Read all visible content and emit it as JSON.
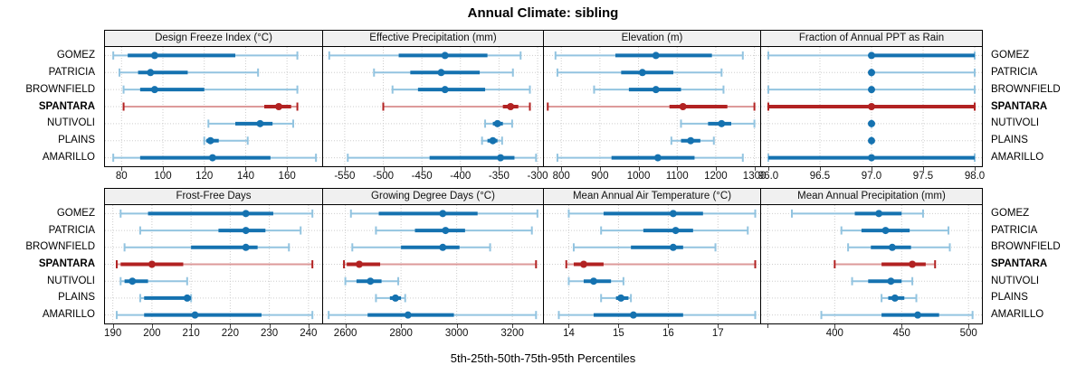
{
  "title": "Annual Climate: sibling",
  "footer": "5th-25th-50th-75th-95th Percentiles",
  "sites": [
    "GOMEZ",
    "PATRICIA",
    "BROWNFIELD",
    "SPANTARA",
    "NUTIVOLI",
    "PLAINS",
    "AMARILLO"
  ],
  "highlight_site": "SPANTARA",
  "percentiles": [
    5,
    25,
    50,
    75,
    95
  ],
  "colors": {
    "blue": "#1572b0",
    "blue_light": "#93c4e0",
    "red": "#b22222",
    "red_light": "#dd9a9a",
    "grid": "#cdcdcd",
    "border": "#000000",
    "header_bg": "#f0f0f0"
  },
  "chart_data": [
    {
      "type": "scatter",
      "style": "percentile-intervals",
      "title": "Design Freeze Index (°C)",
      "xlim": [
        72,
        177
      ],
      "xticks": [
        80,
        100,
        120,
        140,
        160
      ],
      "xtick_labels": [
        "80",
        "100",
        "120",
        "140",
        "160"
      ],
      "series": [
        {
          "site": "GOMEZ",
          "percentiles": [
            76,
            83,
            96,
            135,
            165
          ]
        },
        {
          "site": "PATRICIA",
          "percentiles": [
            79,
            88,
            94,
            112,
            146
          ]
        },
        {
          "site": "BROWNFIELD",
          "percentiles": [
            81,
            89,
            96,
            120,
            165
          ]
        },
        {
          "site": "SPANTARA",
          "percentiles": [
            81,
            149,
            156,
            162,
            165
          ]
        },
        {
          "site": "NUTIVOLI",
          "percentiles": [
            122,
            135,
            147,
            153,
            163
          ]
        },
        {
          "site": "PLAINS",
          "percentiles": [
            120,
            121,
            123,
            127,
            141
          ]
        },
        {
          "site": "AMARILLO",
          "percentiles": [
            76,
            89,
            124,
            152,
            174
          ]
        }
      ]
    },
    {
      "type": "scatter",
      "style": "percentile-intervals",
      "title": "Effective Precipitation (mm)",
      "xlim": [
        -578,
        -293
      ],
      "xticks": [
        -550,
        -500,
        -450,
        -400,
        -350,
        -300
      ],
      "xtick_labels": [
        "-550",
        "-500",
        "-450",
        "-400",
        "-350",
        "-300"
      ],
      "series": [
        {
          "site": "GOMEZ",
          "percentiles": [
            -570,
            -480,
            -420,
            -365,
            -322
          ]
        },
        {
          "site": "PATRICIA",
          "percentiles": [
            -512,
            -465,
            -425,
            -375,
            -332
          ]
        },
        {
          "site": "BROWNFIELD",
          "percentiles": [
            -488,
            -455,
            -420,
            -368,
            -310
          ]
        },
        {
          "site": "SPANTARA",
          "percentiles": [
            -500,
            -345,
            -335,
            -325,
            -310
          ]
        },
        {
          "site": "NUTIVOLI",
          "percentiles": [
            -368,
            -358,
            -352,
            -345,
            -333
          ]
        },
        {
          "site": "PLAINS",
          "percentiles": [
            -372,
            -365,
            -358,
            -352,
            -346
          ]
        },
        {
          "site": "AMARILLO",
          "percentiles": [
            -546,
            -440,
            -348,
            -330,
            -302
          ]
        }
      ]
    },
    {
      "type": "scatter",
      "style": "percentile-intervals",
      "title": "Elevation (m)",
      "xlim": [
        755,
        1315
      ],
      "xticks": [
        800,
        900,
        1000,
        1100,
        1200,
        1300
      ],
      "xtick_labels": [
        "800",
        "900",
        "1000",
        "1100",
        "1200",
        "1300"
      ],
      "series": [
        {
          "site": "GOMEZ",
          "percentiles": [
            785,
            940,
            1045,
            1190,
            1270
          ]
        },
        {
          "site": "PATRICIA",
          "percentiles": [
            790,
            955,
            1010,
            1090,
            1215
          ]
        },
        {
          "site": "BROWNFIELD",
          "percentiles": [
            885,
            975,
            1045,
            1110,
            1220
          ]
        },
        {
          "site": "SPANTARA",
          "percentiles": [
            765,
            1080,
            1115,
            1230,
            1300
          ]
        },
        {
          "site": "NUTIVOLI",
          "percentiles": [
            1110,
            1180,
            1215,
            1240,
            1300
          ]
        },
        {
          "site": "PLAINS",
          "percentiles": [
            1085,
            1110,
            1135,
            1160,
            1195
          ]
        },
        {
          "site": "AMARILLO",
          "percentiles": [
            790,
            930,
            1050,
            1145,
            1270
          ]
        }
      ]
    },
    {
      "type": "scatter",
      "style": "percentile-intervals",
      "title": "Fraction of Annual PPT as Rain",
      "xlim": [
        95.93,
        98.07
      ],
      "xticks": [
        96.0,
        96.5,
        97.0,
        97.5,
        98.0
      ],
      "xtick_labels": [
        "96.0",
        "96.5",
        "97.0",
        "97.5",
        "98.0"
      ],
      "series": [
        {
          "site": "GOMEZ",
          "percentiles": [
            96,
            97,
            97,
            98,
            98
          ]
        },
        {
          "site": "PATRICIA",
          "percentiles": [
            97,
            97,
            97,
            97,
            98
          ]
        },
        {
          "site": "BROWNFIELD",
          "percentiles": [
            96,
            97,
            97,
            97,
            98
          ]
        },
        {
          "site": "SPANTARA",
          "percentiles": [
            96,
            96,
            97,
            98,
            98
          ]
        },
        {
          "site": "NUTIVOLI",
          "percentiles": [
            97,
            97,
            97,
            97,
            97
          ]
        },
        {
          "site": "PLAINS",
          "percentiles": [
            97,
            97,
            97,
            97,
            97
          ]
        },
        {
          "site": "AMARILLO",
          "percentiles": [
            96,
            96,
            97,
            98,
            98
          ]
        }
      ]
    },
    {
      "type": "scatter",
      "style": "percentile-intervals",
      "title": "Frost-Free Days",
      "xlim": [
        188,
        243.5
      ],
      "xticks": [
        190,
        200,
        210,
        220,
        230,
        240
      ],
      "xtick_labels": [
        "190",
        "200",
        "210",
        "220",
        "230",
        "240"
      ],
      "series": [
        {
          "site": "GOMEZ",
          "percentiles": [
            192,
            199,
            224,
            231,
            241
          ]
        },
        {
          "site": "PATRICIA",
          "percentiles": [
            197,
            217,
            224,
            229,
            238
          ]
        },
        {
          "site": "BROWNFIELD",
          "percentiles": [
            193,
            210,
            224,
            227,
            235
          ]
        },
        {
          "site": "SPANTARA",
          "percentiles": [
            191,
            192,
            200,
            208,
            241
          ]
        },
        {
          "site": "NUTIVOLI",
          "percentiles": [
            192,
            193,
            195,
            199,
            209
          ]
        },
        {
          "site": "PLAINS",
          "percentiles": [
            197,
            198,
            209,
            210,
            210
          ]
        },
        {
          "site": "AMARILLO",
          "percentiles": [
            191,
            198,
            211,
            228,
            241
          ]
        }
      ]
    },
    {
      "type": "scatter",
      "style": "percentile-intervals",
      "title": "Growing Degree Days (°C)",
      "xlim": [
        2520,
        3310
      ],
      "xticks": [
        2600,
        2800,
        3000,
        3200
      ],
      "xtick_labels": [
        "2600",
        "2800",
        "3000",
        "3200"
      ],
      "series": [
        {
          "site": "GOMEZ",
          "percentiles": [
            2620,
            2720,
            2950,
            3075,
            3290
          ]
        },
        {
          "site": "PATRICIA",
          "percentiles": [
            2710,
            2850,
            2960,
            3030,
            3270
          ]
        },
        {
          "site": "BROWNFIELD",
          "percentiles": [
            2625,
            2800,
            2950,
            3010,
            3120
          ]
        },
        {
          "site": "SPANTARA",
          "percentiles": [
            2595,
            2605,
            2650,
            2725,
            3285
          ]
        },
        {
          "site": "NUTIVOLI",
          "percentiles": [
            2600,
            2640,
            2690,
            2730,
            2790
          ]
        },
        {
          "site": "PLAINS",
          "percentiles": [
            2710,
            2760,
            2780,
            2800,
            2815
          ]
        },
        {
          "site": "AMARILLO",
          "percentiles": [
            2540,
            2680,
            2825,
            2990,
            3285
          ]
        }
      ]
    },
    {
      "type": "scatter",
      "style": "percentile-intervals",
      "title": "Mean Annual Air Temperature (°C)",
      "xlim": [
        13.5,
        17.85
      ],
      "xticks": [
        14,
        15,
        16,
        17
      ],
      "xtick_labels": [
        "14",
        "15",
        "16",
        "17"
      ],
      "series": [
        {
          "site": "GOMEZ",
          "percentiles": [
            14.0,
            14.7,
            16.1,
            16.7,
            17.75
          ]
        },
        {
          "site": "PATRICIA",
          "percentiles": [
            14.65,
            15.5,
            16.15,
            16.5,
            17.6
          ]
        },
        {
          "site": "BROWNFIELD",
          "percentiles": [
            14.1,
            15.25,
            16.1,
            16.3,
            16.95
          ]
        },
        {
          "site": "SPANTARA",
          "percentiles": [
            13.95,
            14.1,
            14.3,
            14.7,
            17.75
          ]
        },
        {
          "site": "NUTIVOLI",
          "percentiles": [
            14.0,
            14.3,
            14.5,
            14.85,
            15.1
          ]
        },
        {
          "site": "PLAINS",
          "percentiles": [
            14.65,
            14.95,
            15.05,
            15.2,
            15.25
          ]
        },
        {
          "site": "AMARILLO",
          "percentiles": [
            13.8,
            14.5,
            15.3,
            16.3,
            17.75
          ]
        }
      ]
    },
    {
      "type": "scatter",
      "style": "percentile-intervals",
      "title": "Mean Annual Precipitation (mm)",
      "xlim": [
        345,
        510
      ],
      "xticks": [
        350,
        400,
        450,
        500
      ],
      "xtick_labels": [
        "",
        "400",
        "450",
        "500"
      ],
      "series": [
        {
          "site": "GOMEZ",
          "percentiles": [
            368,
            415,
            433,
            450,
            466
          ]
        },
        {
          "site": "PATRICIA",
          "percentiles": [
            405,
            420,
            438,
            456,
            485
          ]
        },
        {
          "site": "BROWNFIELD",
          "percentiles": [
            410,
            427,
            443,
            457,
            486
          ]
        },
        {
          "site": "SPANTARA",
          "percentiles": [
            400,
            435,
            458,
            468,
            475
          ]
        },
        {
          "site": "NUTIVOLI",
          "percentiles": [
            413,
            425,
            442,
            450,
            458
          ]
        },
        {
          "site": "PLAINS",
          "percentiles": [
            435,
            440,
            445,
            452,
            461
          ]
        },
        {
          "site": "AMARILLO",
          "percentiles": [
            390,
            435,
            462,
            478,
            503
          ]
        }
      ]
    }
  ]
}
